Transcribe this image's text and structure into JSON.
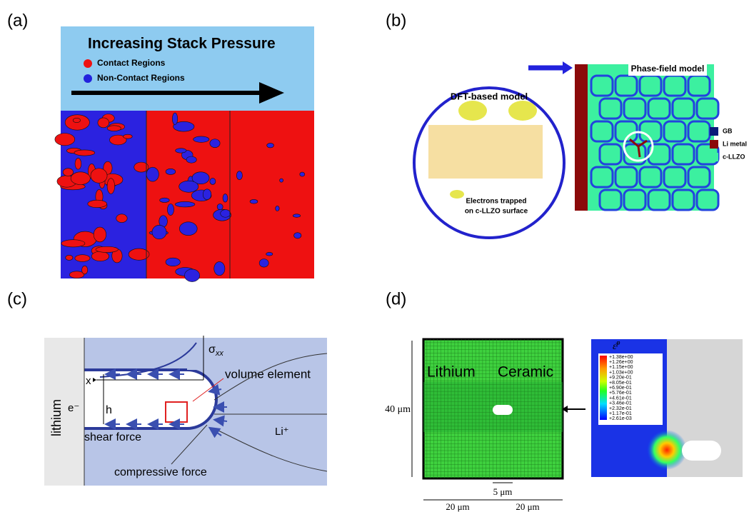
{
  "panels": {
    "a": {
      "label": "(a)",
      "title": "Increasing Stack Pressure",
      "legend": [
        "Contact Regions",
        "Non-Contact Regions"
      ]
    },
    "b": {
      "label": "(b)",
      "dft_title": "DFT-based model",
      "dft_caption": [
        "Electrons trapped",
        "on c-LLZO surface"
      ],
      "pf_title": "Phase-field model",
      "legend": [
        "GB",
        "Li metal",
        "c-LLZO"
      ]
    },
    "c": {
      "label": "(c)",
      "lithium": "lithium",
      "sigma": "σ",
      "sigma_sub": "xx",
      "x": "x",
      "volume_element": "volume element",
      "electron": "e⁻",
      "h": "h",
      "li_ion": "Li⁺",
      "shear_force": "shear force",
      "compressive_force": "compressive force"
    },
    "d": {
      "label": "(d)",
      "lithium": "Lithium",
      "ceramic": "Ceramic",
      "height": "40 μm",
      "notch": "5 μm",
      "width_left": "20 μm",
      "width_right": "20 μm",
      "colorbar_symbol": "ε̄",
      "colorbar_sup": "p",
      "colorbar_values": [
        "+1.38e+00",
        "+1.26e+00",
        "+1.15e+00",
        "+1.03e+00",
        "+9.20e-01",
        "+8.05e-01",
        "+6.90e-01",
        "+5.76e-01",
        "+4.61e-01",
        "+3.46e-01",
        "+2.32e-01",
        "+1.17e-01",
        "+2.61e-03"
      ]
    }
  }
}
